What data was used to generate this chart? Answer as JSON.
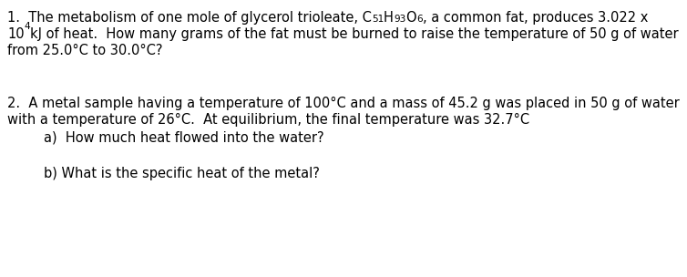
{
  "background_color": "#ffffff",
  "figsize": [
    7.54,
    3.04
  ],
  "dpi": 100,
  "base_fontsize": 10.5,
  "font_family": "DejaVu Sans",
  "q1_main": "1.  The metabolism of one mole of glycerol trioleate, C",
  "q1_sub1": "51",
  "q1_mid1": "H",
  "q1_sub2": "93",
  "q1_mid2": "O",
  "q1_sub3": "6",
  "q1_end": ", a common fat, produces 3.022 x",
  "q1_line2_start": "10",
  "q1_line2_sup": "4",
  "q1_line2_end": "kJ of heat.  How many grams of the fat must be burned to raise the temperature of 50 g of water",
  "q1_line3": "from 25.0°C to 30.0°C?",
  "q2_line1": "2.  A metal sample having a temperature of 100°C and a mass of 45.2 g was placed in 50 g of water",
  "q2_line2": "with a temperature of 26°C.  At equilibrium, the final temperature was 32.7°C",
  "q2a": "a)  How much heat flowed into the water?",
  "q2b": "b) What is the specific heat of the metal?"
}
